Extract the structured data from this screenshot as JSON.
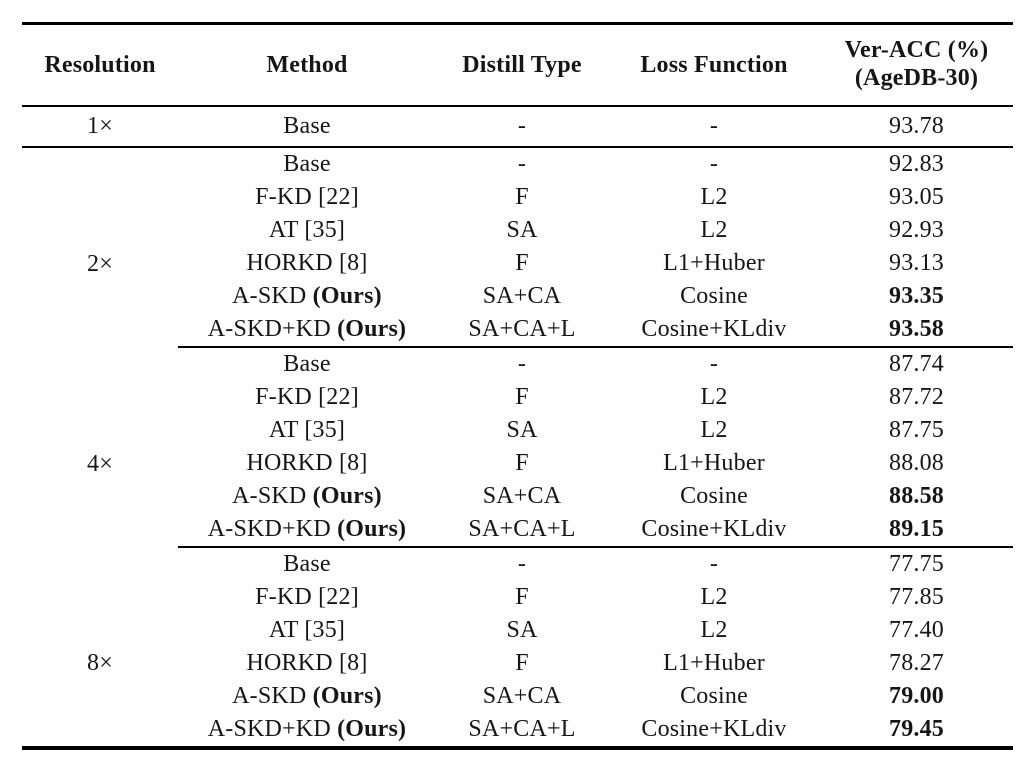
{
  "page": {
    "background": "#ffffff",
    "text_color": "#161616",
    "rule_color": "#000000"
  },
  "table": {
    "header": {
      "resolution": "Resolution",
      "method": "Method",
      "distill_type": "Distill Type",
      "loss_function": "Loss Function",
      "ver_acc_line1": "Ver-ACC (%)",
      "ver_acc_line2": "(AgeDB-30)"
    },
    "groups": [
      {
        "resolution": "1×",
        "rows": [
          {
            "method": "Base",
            "method_suffix": "",
            "distill_type": "-",
            "loss_function": "-",
            "ver_acc": "93.78",
            "bold": false
          }
        ]
      },
      {
        "resolution": "2×",
        "rows": [
          {
            "method": "Base",
            "method_suffix": "",
            "distill_type": "-",
            "loss_function": "-",
            "ver_acc": "92.83",
            "bold": false
          },
          {
            "method": "F-KD [22]",
            "method_suffix": "",
            "distill_type": "F",
            "loss_function": "L2",
            "ver_acc": "93.05",
            "bold": false
          },
          {
            "method": "AT [35]",
            "method_suffix": "",
            "distill_type": "SA",
            "loss_function": "L2",
            "ver_acc": "92.93",
            "bold": false
          },
          {
            "method": "HORKD [8]",
            "method_suffix": "",
            "distill_type": "F",
            "loss_function": "L1+Huber",
            "ver_acc": "93.13",
            "bold": false
          },
          {
            "method": "A-SKD",
            "method_suffix": "(Ours)",
            "distill_type": "SA+CA",
            "loss_function": "Cosine",
            "ver_acc": "93.35",
            "bold": true
          },
          {
            "method": "A-SKD+KD",
            "method_suffix": "(Ours)",
            "distill_type": "SA+CA+L",
            "loss_function": "Cosine+KLdiv",
            "ver_acc": "93.58",
            "bold": true
          }
        ]
      },
      {
        "resolution": "4×",
        "rows": [
          {
            "method": "Base",
            "method_suffix": "",
            "distill_type": "-",
            "loss_function": "-",
            "ver_acc": "87.74",
            "bold": false
          },
          {
            "method": "F-KD [22]",
            "method_suffix": "",
            "distill_type": "F",
            "loss_function": "L2",
            "ver_acc": "87.72",
            "bold": false
          },
          {
            "method": "AT [35]",
            "method_suffix": "",
            "distill_type": "SA",
            "loss_function": "L2",
            "ver_acc": "87.75",
            "bold": false
          },
          {
            "method": "HORKD [8]",
            "method_suffix": "",
            "distill_type": "F",
            "loss_function": "L1+Huber",
            "ver_acc": "88.08",
            "bold": false
          },
          {
            "method": "A-SKD",
            "method_suffix": "(Ours)",
            "distill_type": "SA+CA",
            "loss_function": "Cosine",
            "ver_acc": "88.58",
            "bold": true
          },
          {
            "method": "A-SKD+KD",
            "method_suffix": "(Ours)",
            "distill_type": "SA+CA+L",
            "loss_function": "Cosine+KLdiv",
            "ver_acc": "89.15",
            "bold": true
          }
        ]
      },
      {
        "resolution": "8×",
        "rows": [
          {
            "method": "Base",
            "method_suffix": "",
            "distill_type": "-",
            "loss_function": "-",
            "ver_acc": "77.75",
            "bold": false
          },
          {
            "method": "F-KD [22]",
            "method_suffix": "",
            "distill_type": "F",
            "loss_function": "L2",
            "ver_acc": "77.85",
            "bold": false
          },
          {
            "method": "AT [35]",
            "method_suffix": "",
            "distill_type": "SA",
            "loss_function": "L2",
            "ver_acc": "77.40",
            "bold": false
          },
          {
            "method": "HORKD [8]",
            "method_suffix": "",
            "distill_type": "F",
            "loss_function": "L1+Huber",
            "ver_acc": "78.27",
            "bold": false
          },
          {
            "method": "A-SKD",
            "method_suffix": "(Ours)",
            "distill_type": "SA+CA",
            "loss_function": "Cosine",
            "ver_acc": "79.00",
            "bold": true
          },
          {
            "method": "A-SKD+KD",
            "method_suffix": "(Ours)",
            "distill_type": "SA+CA+L",
            "loss_function": "Cosine+KLdiv",
            "ver_acc": "79.45",
            "bold": true
          }
        ]
      }
    ]
  }
}
